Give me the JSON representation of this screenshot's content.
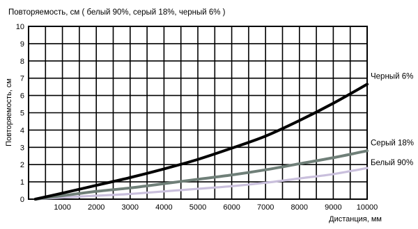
{
  "chart_data": {
    "type": "line",
    "title": "Повторяемость, см ( белый 90%, серый 18%, черный 6% )",
    "xlabel": "Дистанция, мм",
    "ylabel": "Повторяемость, см",
    "xlim": [
      0,
      10000
    ],
    "ylim": [
      0,
      10
    ],
    "grid": true,
    "x_ticks": [
      "1000",
      "2000",
      "3000",
      "4000",
      "5000",
      "6000",
      "7000",
      "8000",
      "9000",
      "10000"
    ],
    "y_ticks": [
      "0",
      "1",
      "2",
      "3",
      "4",
      "5",
      "6",
      "7",
      "8",
      "9",
      "10"
    ],
    "series": [
      {
        "name": "Черный 6%",
        "color": "#000000",
        "x": [
          200,
          1000,
          2000,
          3000,
          4000,
          5000,
          6000,
          7000,
          8000,
          9000,
          10000
        ],
        "y": [
          0.0,
          0.35,
          0.8,
          1.25,
          1.75,
          2.3,
          2.95,
          3.65,
          4.55,
          5.55,
          6.65
        ]
      },
      {
        "name": "Серый 18%",
        "color": "#6f7f78",
        "x": [
          200,
          1000,
          2000,
          3000,
          4000,
          5000,
          6000,
          7000,
          8000,
          9000,
          10000
        ],
        "y": [
          0.0,
          0.2,
          0.45,
          0.65,
          0.9,
          1.15,
          1.4,
          1.7,
          2.05,
          2.4,
          2.8
        ]
      },
      {
        "name": "Белый 90%",
        "color": "#c9bfdc",
        "x": [
          200,
          1000,
          2000,
          3000,
          4000,
          5000,
          6000,
          7000,
          8000,
          9000,
          10000
        ],
        "y": [
          0.0,
          0.1,
          0.2,
          0.3,
          0.45,
          0.6,
          0.75,
          0.95,
          1.2,
          1.45,
          1.8
        ]
      }
    ]
  }
}
